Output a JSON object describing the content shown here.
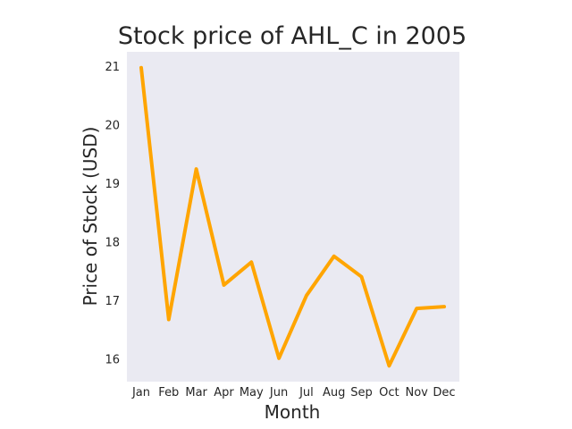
{
  "chart_data": {
    "type": "line",
    "title": "Stock price of AHL_C in 2005",
    "xlabel": "Month",
    "ylabel": "Price of Stock (USD)",
    "categories": [
      "Jan",
      "Feb",
      "Mar",
      "Apr",
      "May",
      "Jun",
      "Jul",
      "Aug",
      "Sep",
      "Oct",
      "Nov",
      "Dec"
    ],
    "series": [
      {
        "values": [
          20.98,
          16.68,
          19.25,
          17.27,
          17.66,
          16.02,
          17.09,
          17.76,
          17.41,
          15.89,
          16.87,
          16.9
        ],
        "color": "#FFA500"
      }
    ],
    "yticks": [
      "16",
      "17",
      "18",
      "19",
      "20",
      "21"
    ],
    "ylim": [
      15.62,
      21.25
    ],
    "grid": false,
    "background": "#EAEAF2",
    "legend": "none"
  }
}
